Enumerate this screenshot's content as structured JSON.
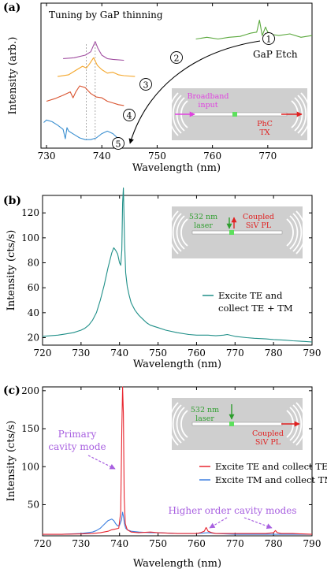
{
  "colors": {
    "green": "#5aa83c",
    "purple": "#a14fa1",
    "orange": "#f4a62a",
    "red": "#d9532f",
    "blue": "#3a8fd0",
    "teal": "#1f8f88",
    "te_red": "#e8262f",
    "tm_blue": "#3d7fe0",
    "violet": "#a860e0",
    "magenta": "#e040e0",
    "laser_green": "#2e9e2e",
    "arrow_red": "#e02020",
    "device_bg": "#cfcfcf",
    "dashed": "#999999"
  },
  "chart_data": [
    {
      "panel": "(a)",
      "type": "line",
      "title": "Tuning by GaP thinning",
      "xlabel": "Wavelength (nm)",
      "ylabel": "Intensity (arb.)",
      "xlim": [
        729,
        778
      ],
      "xticks": [
        730,
        740,
        750,
        760,
        770
      ],
      "yticks": [],
      "series": [
        {
          "name": "1",
          "x": [
            757,
            759,
            761,
            763,
            765,
            766,
            767,
            768,
            768.5,
            769,
            769.6,
            770,
            771,
            772,
            774,
            776,
            778
          ],
          "y": [
            1.28,
            1.3,
            1.28,
            1.3,
            1.31,
            1.33,
            1.35,
            1.36,
            1.5,
            1.32,
            1.42,
            1.36,
            1.33,
            1.32,
            1.34,
            1.3,
            1.32
          ]
        },
        {
          "name": "2",
          "x": [
            733,
            735,
            737,
            738,
            738.8,
            739.3,
            740,
            741,
            742,
            744
          ],
          "y": [
            1.05,
            1.06,
            1.09,
            1.13,
            1.25,
            1.17,
            1.09,
            1.05,
            1.04,
            1.03
          ]
        },
        {
          "name": "3",
          "x": [
            732,
            734,
            735.5,
            736.5,
            737.2,
            737.8,
            738.5,
            739.2,
            740,
            741,
            742,
            743,
            744,
            746
          ],
          "y": [
            0.84,
            0.86,
            0.92,
            0.96,
            0.94,
            0.99,
            1.06,
            0.97,
            0.92,
            0.88,
            0.89,
            0.86,
            0.85,
            0.84
          ]
        },
        {
          "name": "4",
          "x": [
            730,
            731.5,
            733,
            734.3,
            734.8,
            735.3,
            736,
            737,
            738,
            739,
            740,
            741,
            742,
            743,
            744
          ],
          "y": [
            0.55,
            0.58,
            0.62,
            0.66,
            0.59,
            0.66,
            0.73,
            0.71,
            0.64,
            0.6,
            0.59,
            0.55,
            0.53,
            0.51,
            0.5
          ]
        },
        {
          "name": "5",
          "x": [
            729.5,
            730,
            731,
            732,
            733,
            733.4,
            733.7,
            734,
            735,
            736,
            737,
            738,
            739,
            740,
            741,
            742,
            743,
            744
          ],
          "y": [
            0.3,
            0.33,
            0.31,
            0.27,
            0.22,
            0.11,
            0.24,
            0.2,
            0.16,
            0.12,
            0.1,
            0.1,
            0.12,
            0.17,
            0.2,
            0.17,
            0.11,
            0.08
          ]
        }
      ],
      "markers": [
        "1",
        "2",
        "3",
        "4",
        "5"
      ],
      "annotations": {
        "etch_label": "GaP Etch"
      },
      "inset_labels": {
        "input": [
          "Broadband",
          "input"
        ],
        "output": [
          "PhC",
          "TX"
        ]
      }
    },
    {
      "panel": "(b)",
      "type": "line",
      "xlabel": "Wavelength (nm)",
      "ylabel": "Intensity (cts/s)",
      "xlim": [
        720,
        790
      ],
      "ylim": [
        14,
        134
      ],
      "xticks": [
        720,
        730,
        740,
        750,
        760,
        770,
        780,
        790
      ],
      "yticks": [
        20,
        40,
        60,
        80,
        100,
        120
      ],
      "series": [
        {
          "name": "Excite TE and collect TE + TM",
          "x": [
            720,
            722,
            724,
            726,
            728,
            730,
            731,
            732,
            733,
            734,
            735,
            736,
            737,
            738,
            738.5,
            739,
            739.5,
            740,
            740.3,
            740.6,
            740.8,
            741,
            741.3,
            741.6,
            742,
            742.5,
            743,
            744,
            745,
            746,
            747,
            748,
            750,
            752,
            755,
            758,
            760,
            763,
            765,
            767,
            768,
            770,
            773,
            775,
            778,
            780,
            783,
            785,
            788,
            790
          ],
          "y": [
            21,
            21.5,
            22,
            23,
            24,
            26,
            27.5,
            30,
            34,
            40,
            50,
            62,
            76,
            88,
            92,
            90,
            87,
            80,
            78,
            90,
            128,
            140,
            96,
            72,
            61,
            54,
            48,
            42,
            38,
            35,
            32,
            30,
            28,
            26,
            24,
            22.5,
            22,
            22,
            21.5,
            22,
            22.5,
            21,
            20,
            19.5,
            19,
            18.5,
            18,
            17.5,
            17,
            16.5
          ]
        }
      ],
      "inset_labels": {
        "laser": [
          "532 nm",
          "laser"
        ],
        "pl": [
          "Coupled",
          "SiV PL"
        ]
      }
    },
    {
      "panel": "(c)",
      "type": "line",
      "xlabel": "Wavelength (nm)",
      "ylabel": "Intensity (cts/s)",
      "xlim": [
        720,
        790
      ],
      "ylim": [
        9,
        205
      ],
      "xticks": [
        720,
        730,
        740,
        750,
        760,
        770,
        780,
        790
      ],
      "yticks": [
        50,
        100,
        150,
        200
      ],
      "series": [
        {
          "name": "Excite TE and collect TE",
          "x": [
            720,
            725,
            730,
            733,
            735,
            737,
            738,
            739,
            739.8,
            740.3,
            740.6,
            740.8,
            741,
            741.2,
            741.5,
            742,
            743,
            745,
            748,
            750,
            755,
            758,
            760,
            761,
            762,
            762.5,
            763,
            764,
            765,
            770,
            775,
            778,
            780,
            780.5,
            781,
            782,
            785,
            790
          ],
          "y": [
            11,
            11,
            11.5,
            12,
            13,
            15,
            17,
            18,
            19,
            40,
            150,
            205,
            170,
            60,
            25,
            17,
            14,
            13,
            14,
            13,
            12,
            12,
            12,
            13,
            15,
            20,
            15,
            13,
            12,
            12,
            12,
            12,
            13,
            16,
            13,
            12,
            12,
            11
          ]
        },
        {
          "name": "Excite TM and collect TM",
          "x": [
            720,
            725,
            730,
            733,
            734,
            735,
            736,
            737,
            738,
            738.5,
            739,
            739.5,
            740,
            740.5,
            740.8,
            741,
            741.3,
            741.6,
            742,
            743,
            745,
            748,
            750,
            755,
            760,
            763,
            765,
            770,
            775,
            780,
            785,
            790
          ],
          "y": [
            11,
            11,
            12,
            14,
            16,
            19,
            24,
            29,
            31,
            29,
            25,
            22,
            23,
            30,
            40,
            35,
            24,
            19,
            17,
            15,
            14,
            13,
            13,
            12,
            12,
            13,
            12,
            11,
            11,
            11,
            11,
            11
          ]
        }
      ],
      "annotations": {
        "primary": [
          "Primary",
          "cavity mode"
        ],
        "higher": "Higher order cavity modes"
      },
      "inset_labels": {
        "laser": [
          "532 nm",
          "laser"
        ],
        "pl": [
          "Coupled",
          "SiV PL"
        ]
      }
    }
  ]
}
